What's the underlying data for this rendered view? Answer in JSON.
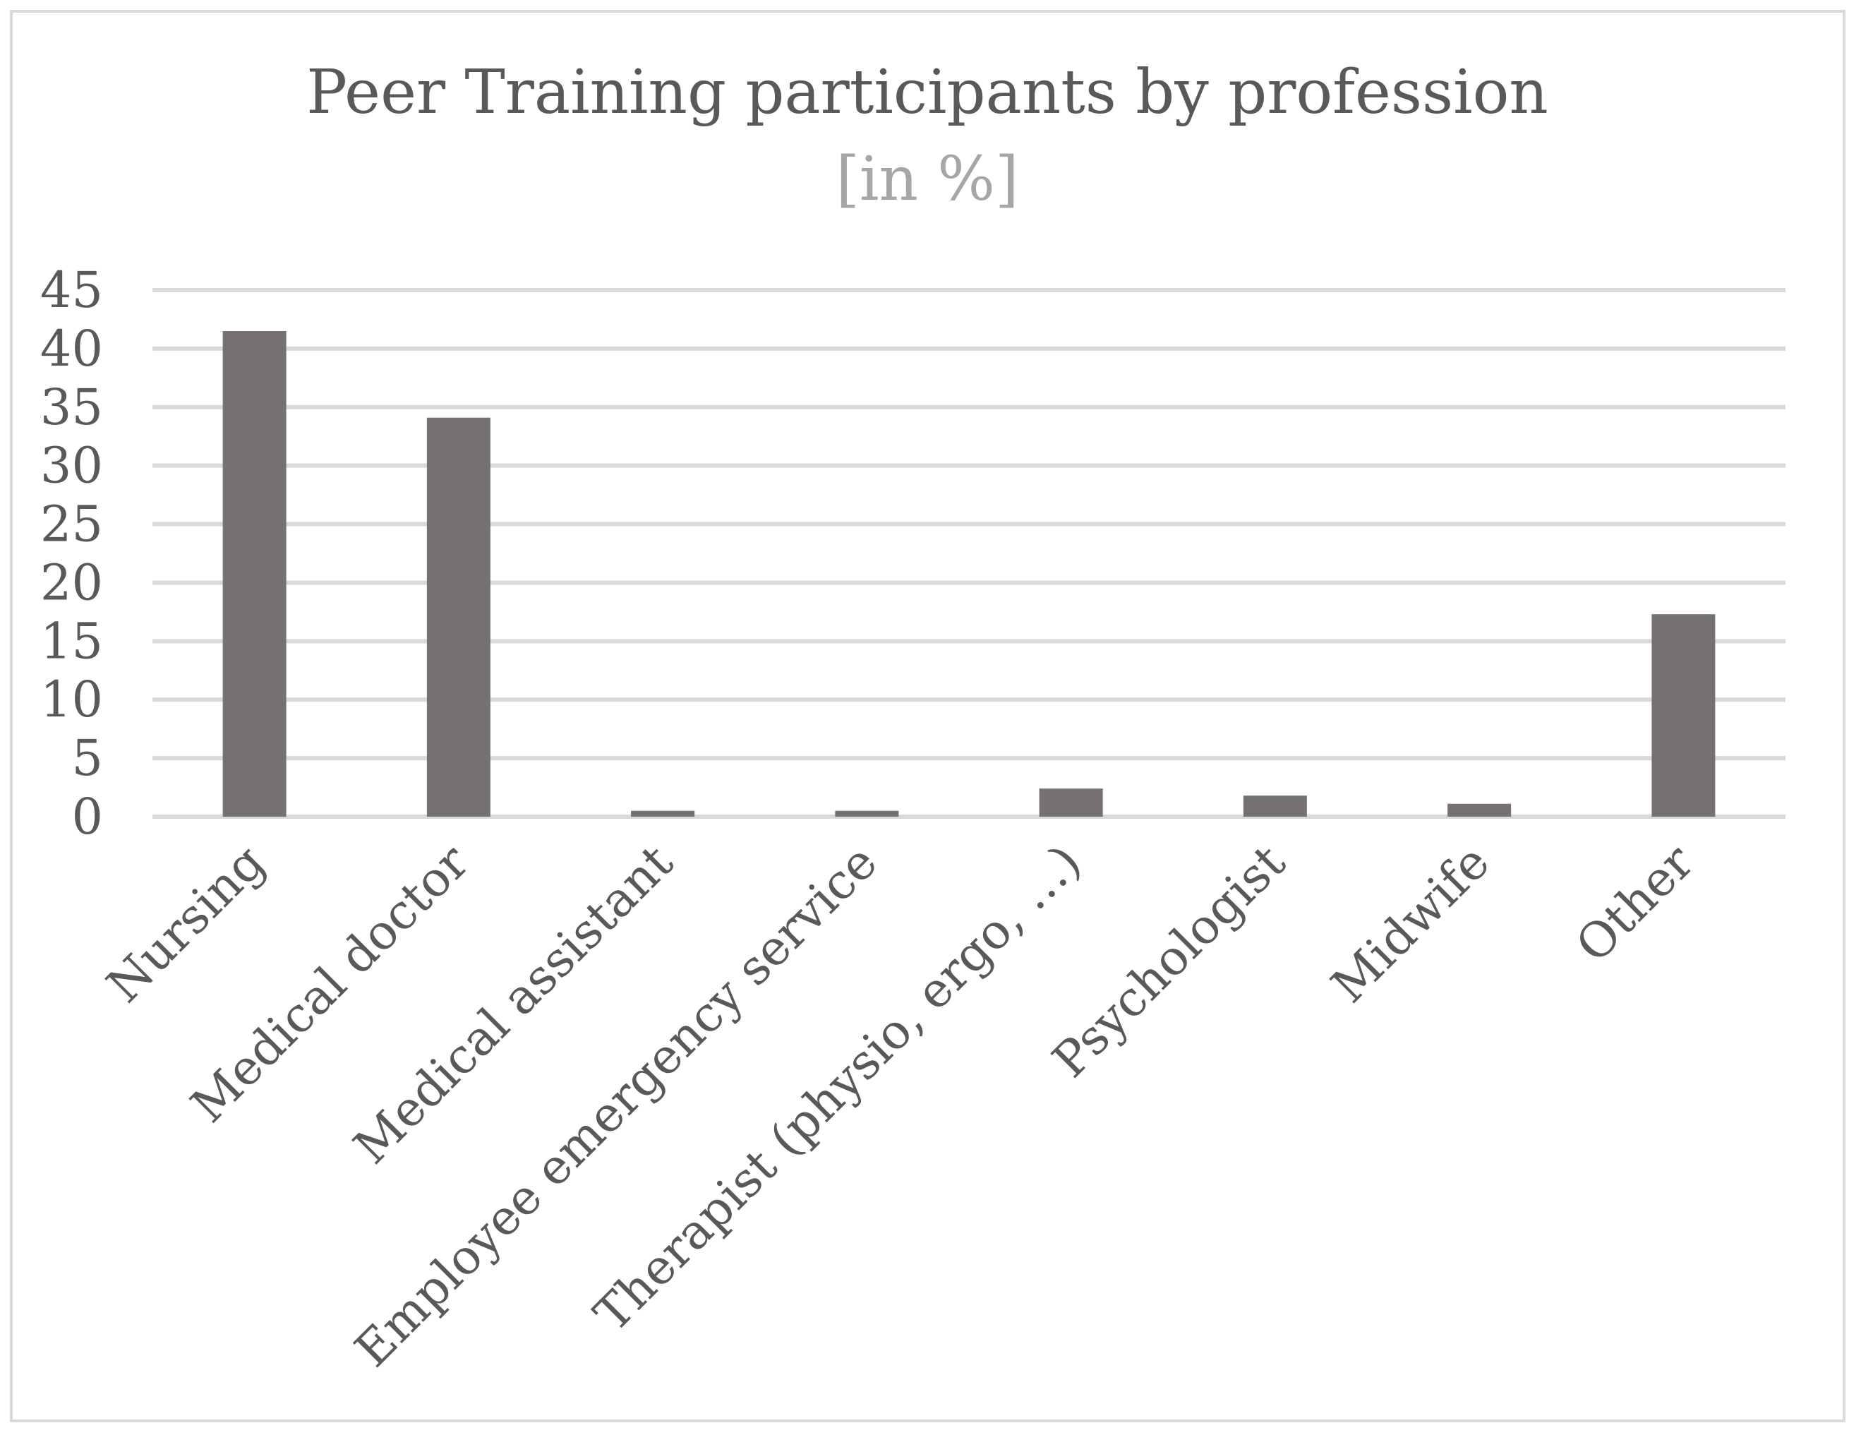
{
  "chart_data": {
    "type": "bar",
    "title": "Peer Training participants by profession",
    "subtitle": "[in %]",
    "categories": [
      "Nursing",
      "Medical doctor",
      "Medical assistant",
      "Employee emergency service",
      "Therapist (physio, ergo, …)",
      "Psychologist",
      "Midwife",
      "Other"
    ],
    "values": [
      41.5,
      34.1,
      0.5,
      0.5,
      2.4,
      1.8,
      1.1,
      17.3
    ],
    "ylim": [
      0,
      45
    ],
    "yticks": [
      0,
      5,
      10,
      15,
      20,
      25,
      30,
      35,
      40,
      45
    ],
    "grid": true,
    "legend": "none",
    "bar_color": "#767171",
    "grid_color": "#d9d9d9",
    "text_color": "#595959",
    "subtitle_color": "#a6a6a6"
  }
}
